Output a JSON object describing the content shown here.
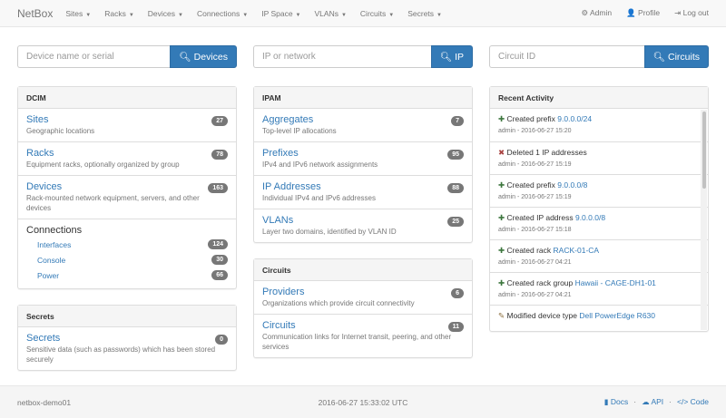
{
  "nav": {
    "brand": "NetBox",
    "menus": [
      "Sites",
      "Racks",
      "Devices",
      "Connections",
      "IP Space",
      "VLANs",
      "Circuits",
      "Secrets"
    ],
    "right": [
      {
        "icon": "gear-icon",
        "glyph": "⚙",
        "label": "Admin"
      },
      {
        "icon": "user-icon",
        "glyph": "👤",
        "label": "Profile"
      },
      {
        "icon": "logout-icon",
        "glyph": "⇥",
        "label": "Log out"
      }
    ]
  },
  "search": [
    {
      "placeholder": "Device name or serial",
      "button": "Devices"
    },
    {
      "placeholder": "IP or network",
      "button": "IP"
    },
    {
      "placeholder": "Circuit ID",
      "button": "Circuits"
    }
  ],
  "dcim": {
    "title": "DCIM",
    "items": [
      {
        "title": "Sites",
        "desc": "Geographic locations",
        "count": "27"
      },
      {
        "title": "Racks",
        "desc": "Equipment racks, optionally organized by group",
        "count": "78"
      },
      {
        "title": "Devices",
        "desc": "Rack-mounted network equipment, servers, and other devices",
        "count": "163"
      }
    ],
    "connections": {
      "title": "Connections",
      "items": [
        {
          "title": "Interfaces",
          "count": "124"
        },
        {
          "title": "Console",
          "count": "30"
        },
        {
          "title": "Power",
          "count": "66"
        }
      ]
    }
  },
  "secrets": {
    "title": "Secrets",
    "items": [
      {
        "title": "Secrets",
        "desc": "Sensitive data (such as passwords) which has been stored securely",
        "count": "0"
      }
    ]
  },
  "ipam": {
    "title": "IPAM",
    "items": [
      {
        "title": "Aggregates",
        "desc": "Top-level IP allocations",
        "count": "7"
      },
      {
        "title": "Prefixes",
        "desc": "IPv4 and IPv6 network assignments",
        "count": "95"
      },
      {
        "title": "IP Addresses",
        "desc": "Individual IPv4 and IPv6 addresses",
        "count": "88"
      },
      {
        "title": "VLANs",
        "desc": "Layer two domains, identified by VLAN ID",
        "count": "25"
      }
    ]
  },
  "circuits": {
    "title": "Circuits",
    "items": [
      {
        "title": "Providers",
        "desc": "Organizations which provide circuit connectivity",
        "count": "6"
      },
      {
        "title": "Circuits",
        "desc": "Communication links for Internet transit, peering, and other services",
        "count": "11"
      }
    ]
  },
  "activity": {
    "title": "Recent Activity",
    "items": [
      {
        "icon": "plus-icon",
        "text": "Created prefix",
        "link": "9.0.0.0/24",
        "meta": "admin - 2016-06-27 15:20"
      },
      {
        "icon": "x-icon",
        "text": "Deleted 1 IP addresses",
        "link": "",
        "meta": "admin - 2016-06-27 15:19"
      },
      {
        "icon": "plus-icon",
        "text": "Created prefix",
        "link": "9.0.0.0/8",
        "meta": "admin - 2016-06-27 15:19"
      },
      {
        "icon": "plus-icon",
        "text": "Created IP address",
        "link": "9.0.0.0/8",
        "meta": "admin - 2016-06-27 15:18"
      },
      {
        "icon": "plus-icon",
        "text": "Created rack",
        "link": "RACK-01-CA",
        "meta": "admin - 2016-06-27 04:21"
      },
      {
        "icon": "plus-icon",
        "text": "Created rack group",
        "link": "Hawaii - CAGE-DH1-01",
        "meta": "admin - 2016-06-27 04:21"
      },
      {
        "icon": "pencil-icon",
        "text": "Modified device type",
        "link": "Dell PowerEdge R630",
        "meta": ""
      }
    ]
  },
  "footer": {
    "host": "netbox-demo01",
    "time": "2016-06-27 15:33:02 UTC",
    "links": [
      "Docs",
      "API",
      "Code"
    ]
  },
  "colors": {
    "primary": "#337ab7",
    "badge": "#777777",
    "plus": "#3c763d",
    "delete": "#a94442"
  }
}
